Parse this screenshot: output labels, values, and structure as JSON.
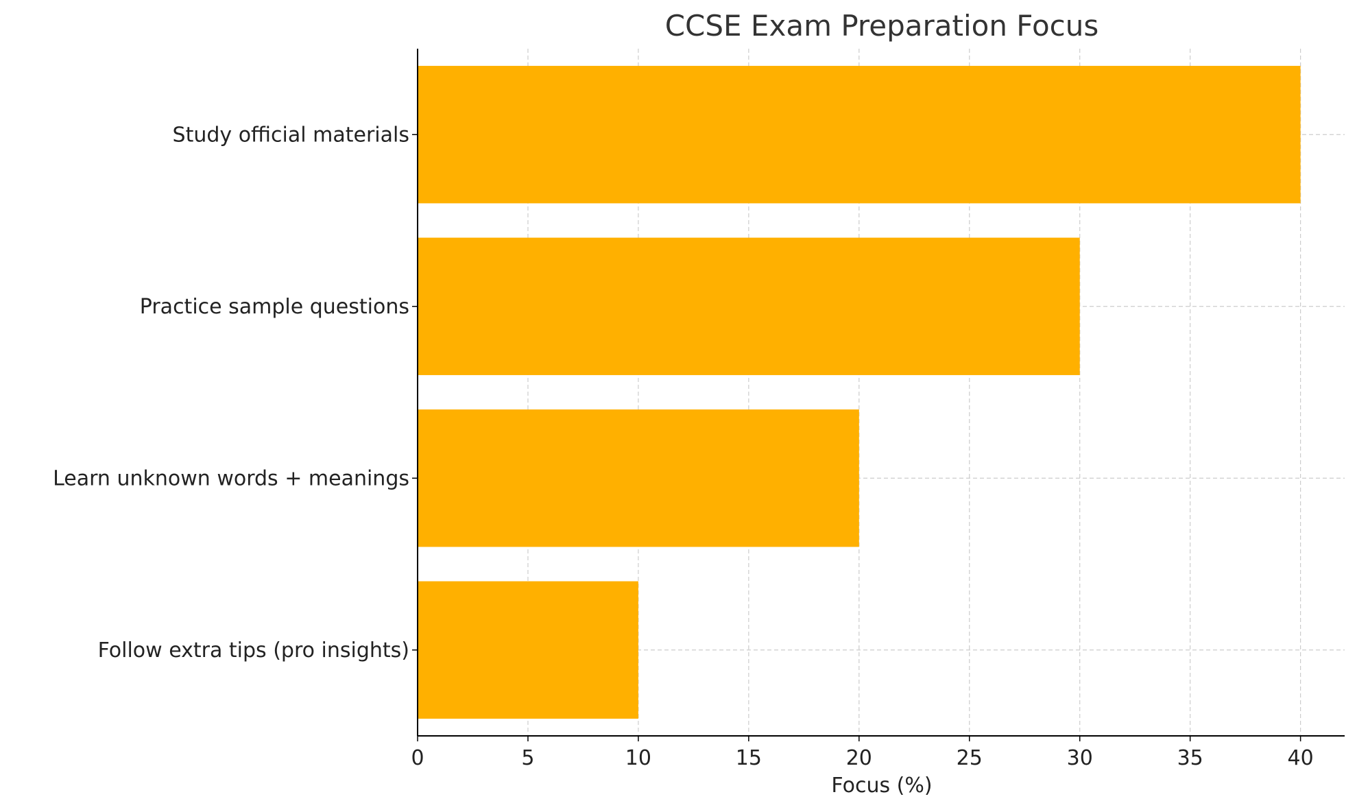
{
  "chart_data": {
    "type": "bar",
    "orientation": "horizontal",
    "title": "CCSE Exam Preparation Focus",
    "xlabel": "Focus (%)",
    "ylabel": "",
    "categories": [
      "Study official materials",
      "Practice sample questions",
      "Learn unknown words + meanings",
      "Follow extra tips (pro insights)"
    ],
    "values": [
      40,
      30,
      20,
      10
    ],
    "xlim": [
      0,
      42
    ],
    "xticks": [
      0,
      5,
      10,
      15,
      20,
      25,
      30,
      35,
      40
    ],
    "grid": true,
    "legend": "none",
    "colors": {
      "bar": "#FFB000",
      "axis": "#000000",
      "grid": "#CCCCCC",
      "text": "#222222",
      "title": "#333333"
    }
  }
}
